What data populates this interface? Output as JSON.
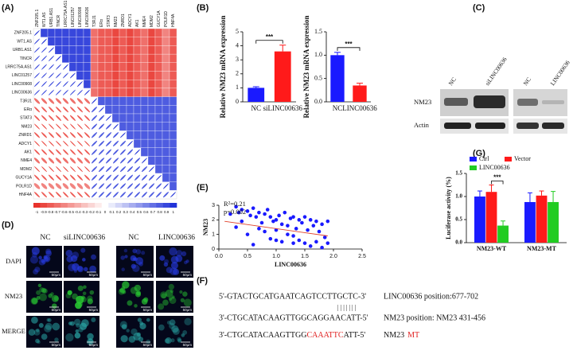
{
  "panel_labels": [
    "(A)",
    "(B)",
    "(C)",
    "(D)",
    "(E)",
    "(F)",
    "(G)"
  ],
  "chart_data": [
    {
      "type": "correlation",
      "labels": [
        "ZNF205.1",
        "WT1.AS",
        "URB1.AS1",
        "TINCR",
        "LRRC75A.AS1",
        "LINC01257",
        "LINC00908",
        "LINC00636",
        "T3RJ1",
        "ERα",
        "STAT3",
        "NM23",
        "ZNRD1",
        "ADCY1",
        "AK1",
        "NME4",
        "MDM2",
        "GUCY1A",
        "POLR1D",
        "HNF4A"
      ],
      "values": [
        [
          1,
          0.9,
          0.9,
          0.9,
          0.9,
          0.9,
          0.9,
          0.9,
          -0.7,
          -0.8,
          -0.8,
          -0.9,
          -0.8,
          -0.9,
          -0.8,
          -0.7,
          -0.9,
          -0.8,
          -0.6,
          -0.8
        ],
        [
          0.9,
          1,
          0.9,
          0.9,
          0.9,
          0.9,
          0.9,
          0.9,
          -0.7,
          -0.8,
          -0.8,
          -0.9,
          -0.8,
          -0.9,
          -0.8,
          -0.7,
          -0.9,
          -0.8,
          -0.6,
          -0.8
        ],
        [
          0.9,
          0.9,
          1,
          0.9,
          0.9,
          0.9,
          0.9,
          0.9,
          -0.7,
          -0.8,
          -0.8,
          -0.9,
          -0.8,
          -0.9,
          -0.8,
          -0.7,
          -0.9,
          -0.8,
          -0.6,
          -0.8
        ],
        [
          0.9,
          0.9,
          0.9,
          1,
          0.9,
          0.9,
          0.9,
          0.9,
          -0.7,
          -0.8,
          -0.8,
          -0.9,
          -0.8,
          -0.9,
          -0.8,
          -0.7,
          -0.9,
          -0.8,
          -0.6,
          -0.8
        ],
        [
          0.9,
          0.9,
          0.9,
          0.9,
          1,
          0.9,
          0.9,
          0.9,
          -0.7,
          -0.8,
          -0.8,
          -0.9,
          -0.8,
          -0.9,
          -0.8,
          -0.7,
          -0.9,
          -0.8,
          -0.6,
          -0.8
        ],
        [
          0.9,
          0.9,
          0.9,
          0.9,
          0.9,
          1,
          0.9,
          0.9,
          -0.7,
          -0.8,
          -0.8,
          -0.9,
          -0.8,
          -0.9,
          -0.8,
          -0.7,
          -0.9,
          -0.8,
          -0.6,
          -0.8
        ],
        [
          0.9,
          0.9,
          0.9,
          0.9,
          0.9,
          0.9,
          1,
          0.9,
          -0.7,
          -0.8,
          -0.8,
          -0.9,
          -0.8,
          -0.9,
          -0.8,
          -0.7,
          -0.9,
          -0.8,
          -0.6,
          -0.8
        ],
        [
          0.9,
          0.9,
          0.9,
          0.9,
          0.9,
          0.9,
          0.9,
          1,
          -0.7,
          -0.8,
          -0.8,
          -0.9,
          -0.8,
          -0.9,
          -0.8,
          -0.7,
          -0.9,
          -0.8,
          -0.6,
          -0.8
        ],
        [
          -0.7,
          -0.7,
          -0.7,
          -0.7,
          -0.7,
          -0.7,
          -0.7,
          -0.7,
          1,
          0.8,
          0.8,
          0.8,
          0.8,
          0.8,
          0.8,
          0.8,
          0.8,
          0.8,
          0.8,
          0.8
        ],
        [
          -0.8,
          -0.8,
          -0.8,
          -0.8,
          -0.8,
          -0.8,
          -0.8,
          -0.8,
          0.8,
          1,
          0.8,
          0.8,
          0.8,
          0.8,
          0.8,
          0.8,
          0.8,
          0.8,
          0.8,
          0.8
        ],
        [
          -0.8,
          -0.8,
          -0.8,
          -0.8,
          -0.8,
          -0.8,
          -0.8,
          -0.8,
          0.8,
          0.8,
          1,
          0.8,
          0.8,
          0.8,
          0.8,
          0.8,
          0.8,
          0.8,
          0.8,
          0.8
        ],
        [
          -0.9,
          -0.9,
          -0.9,
          -0.9,
          -0.9,
          -0.9,
          -0.9,
          -0.9,
          0.8,
          0.8,
          0.8,
          1,
          0.8,
          0.8,
          0.8,
          0.8,
          0.8,
          0.8,
          0.8,
          0.8
        ],
        [
          -0.8,
          -0.8,
          -0.8,
          -0.8,
          -0.8,
          -0.8,
          -0.8,
          -0.8,
          0.8,
          0.8,
          0.8,
          0.8,
          1,
          0.8,
          0.8,
          0.8,
          0.8,
          0.8,
          0.8,
          0.8
        ],
        [
          -0.9,
          -0.9,
          -0.9,
          -0.9,
          -0.9,
          -0.9,
          -0.9,
          -0.9,
          0.8,
          0.8,
          0.8,
          0.8,
          0.8,
          1,
          0.8,
          0.8,
          0.8,
          0.8,
          0.8,
          0.8
        ],
        [
          -0.8,
          -0.8,
          -0.8,
          -0.8,
          -0.8,
          -0.8,
          -0.8,
          -0.8,
          0.8,
          0.8,
          0.8,
          0.8,
          0.8,
          0.8,
          1,
          0.8,
          0.8,
          0.8,
          0.8,
          0.8
        ],
        [
          -0.7,
          -0.7,
          -0.7,
          -0.7,
          -0.7,
          -0.7,
          -0.7,
          -0.7,
          0.8,
          0.8,
          0.8,
          0.8,
          0.8,
          0.8,
          0.8,
          1,
          0.8,
          0.8,
          0.8,
          0.8
        ],
        [
          -0.9,
          -0.9,
          -0.9,
          -0.9,
          -0.9,
          -0.9,
          -0.9,
          -0.9,
          0.8,
          0.8,
          0.8,
          0.8,
          0.8,
          0.8,
          0.8,
          0.8,
          1,
          0.8,
          0.8,
          0.8
        ],
        [
          -0.8,
          -0.8,
          -0.8,
          -0.8,
          -0.8,
          -0.8,
          -0.8,
          -0.8,
          0.8,
          0.8,
          0.8,
          0.8,
          0.8,
          0.8,
          0.8,
          0.8,
          0.8,
          1,
          0.8,
          0.8
        ],
        [
          -0.6,
          -0.6,
          -0.6,
          -0.6,
          -0.6,
          -0.6,
          -0.6,
          -0.6,
          0.8,
          0.8,
          0.8,
          0.8,
          0.8,
          0.8,
          0.8,
          0.8,
          0.8,
          0.8,
          1,
          0.8
        ],
        [
          -0.8,
          -0.8,
          -0.8,
          -0.8,
          -0.8,
          -0.8,
          -0.8,
          -0.8,
          0.8,
          0.8,
          0.8,
          0.8,
          0.8,
          0.8,
          0.8,
          0.8,
          0.8,
          0.8,
          0.8,
          1
        ]
      ],
      "clim": [
        -1,
        1
      ],
      "colors": [
        "#e8322b",
        "#ffffff",
        "#2233d8"
      ],
      "colorbar_ticks": [
        -1,
        -0.9,
        -0.8,
        -0.7,
        -0.6,
        -0.5,
        -0.4,
        -0.3,
        -0.2,
        -0.1,
        0,
        0.1,
        0.2,
        0.3,
        0.4,
        0.5,
        0.6,
        0.7,
        0.8,
        0.9,
        1
      ]
    },
    {
      "type": "bar",
      "ylabel": "Relative NM23 mRNA expression",
      "categories": [
        "NC",
        "siLINC00636"
      ],
      "values": [
        1.0,
        3.6
      ],
      "errors": [
        0.08,
        0.45
      ],
      "colors": [
        "#1a1aff",
        "#ff1a1a"
      ],
      "ylim": [
        0,
        5
      ],
      "yticks": [
        0,
        1,
        2,
        3,
        4,
        5
      ],
      "annotation": "***"
    },
    {
      "type": "bar",
      "ylabel": "Relative NM23 mRNA expression",
      "categories": [
        "NC",
        "LINC00636"
      ],
      "values": [
        1.0,
        0.35
      ],
      "errors": [
        0.06,
        0.05
      ],
      "colors": [
        "#1a1aff",
        "#ff1a1a"
      ],
      "ylim": [
        0,
        1.5
      ],
      "yticks": [
        {
          "value": 0,
          "label": "0.0"
        },
        0.5,
        {
          "value": 1,
          "label": "1.0"
        },
        1.5
      ],
      "annotation": "***"
    },
    {
      "type": "scatter",
      "xlabel": "LINC00636",
      "ylabel": "NM23",
      "annotations": [
        "R²=0.21",
        "p=0.002"
      ],
      "color": "#1a1aff",
      "x": [
        0.2,
        0.3,
        0.35,
        0.4,
        0.5,
        0.55,
        0.6,
        0.65,
        0.7,
        0.75,
        0.8,
        0.85,
        0.9,
        0.95,
        1.0,
        1.05,
        1.1,
        1.15,
        1.2,
        1.25,
        1.3,
        1.35,
        1.4,
        1.45,
        1.5,
        1.55,
        1.6,
        1.65,
        1.7,
        1.75,
        1.8,
        1.85,
        1.9,
        0.3,
        0.4,
        0.5,
        0.6,
        0.7,
        0.8,
        0.9,
        1.0,
        1.1,
        1.2,
        1.3,
        1.4,
        1.5,
        1.6,
        1.7,
        1.8,
        1.9,
        1.0,
        1.3
      ],
      "y": [
        2.4,
        2.9,
        2.5,
        2.7,
        2.6,
        2.3,
        2.8,
        2.2,
        2.5,
        1.8,
        2.4,
        2.7,
        2.2,
        1.9,
        2.0,
        2.3,
        1.7,
        2.5,
        1.6,
        2.1,
        2.2,
        1.4,
        2.0,
        1.8,
        2.2,
        1.3,
        2.0,
        1.6,
        1.9,
        1.2,
        1.7,
        0.8,
        1.9,
        1.5,
        1.9,
        1.0,
        0.3,
        1.4,
        1.2,
        0.7,
        1.3,
        0.5,
        1.0,
        0.9,
        0.6,
        0.4,
        0.2,
        0.5,
        0.1,
        0.4,
        0.6,
        0.4
      ],
      "trendline": {
        "x": [
          0.1,
          1.9
        ],
        "y": [
          1.9,
          0.9
        ],
        "color": "#e0402a"
      },
      "xlim": [
        0,
        2.5
      ],
      "xticks": [
        {
          "value": 0,
          "label": "0.0"
        },
        0.5,
        {
          "value": 1,
          "label": "1.0"
        },
        1.5,
        {
          "value": 2,
          "label": "2.0"
        },
        2.5
      ],
      "ylim": [
        0,
        3
      ],
      "yticks": [
        0,
        1,
        2,
        3
      ]
    },
    {
      "type": "grouped_bar",
      "ylabel": "Luciferase activity (%)",
      "categories": [
        "NM23-WT",
        "NM23-MT"
      ],
      "series": [
        {
          "name": "Ctrl",
          "color": "#1a1aff",
          "values": [
            1.0,
            0.88
          ],
          "errors": [
            0.12,
            0.2
          ]
        },
        {
          "name": "Vector",
          "color": "#ff1a1a",
          "values": [
            1.1,
            1.02
          ],
          "errors": [
            0.15,
            0.1
          ]
        },
        {
          "name": "LINC00636",
          "color": "#22cc22",
          "values": [
            0.37,
            0.88
          ],
          "errors": [
            0.1,
            0.23
          ]
        }
      ],
      "ylim": [
        0,
        1.5
      ],
      "yticks": [
        {
          "value": 0,
          "label": "0.0"
        },
        0.5,
        {
          "value": 1,
          "label": "1.0"
        },
        1.5
      ],
      "annotation": "***"
    }
  ],
  "western_blot": {
    "lanes": [
      "NC",
      "siLINC00636",
      "NC",
      "LINC00636"
    ],
    "rows": [
      "NM23",
      "Actin"
    ]
  },
  "microscopy": {
    "columns": [
      "NC",
      "siLINC00636",
      "NC",
      "LINC00636"
    ],
    "rows": [
      "DAPI",
      "NM23",
      "MERGE"
    ],
    "scale_bar": "50μm"
  },
  "sequence": {
    "line1": "5'-GTACTGCATGAATCAGTCCTTGCTC-3'",
    "note1": "LINC00636 position:677-702",
    "pairs": "| | | | | | |",
    "line2": "3'-CTGCATACAAGTTGGCAGGAACATT-5'",
    "note2": "NM23 position: NM23 431-456",
    "line3": [
      "3'-CTGCATACAAGTTGG",
      "CAAATTC",
      "ATT-5'"
    ],
    "note3": [
      "NM23",
      "MT"
    ]
  }
}
